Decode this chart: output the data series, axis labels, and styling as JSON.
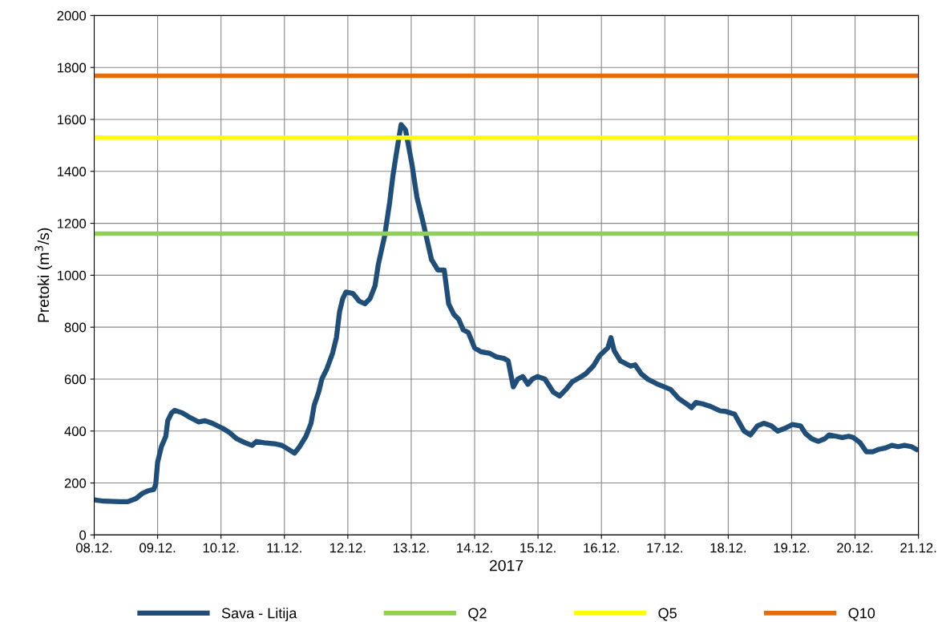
{
  "chart_data": {
    "type": "line",
    "xlabel": "2017",
    "ylabel": "Pretoki (m$^{3}$/s)",
    "ylim": [
      0,
      2000
    ],
    "yticks": [
      0,
      200,
      400,
      600,
      800,
      1000,
      1200,
      1400,
      1600,
      1800,
      2000
    ],
    "xlim": [
      "2017-12-08",
      "2017-12-21"
    ],
    "xticks": [
      {
        "value": "2017-12-08",
        "label": "08.12."
      },
      {
        "value": "2017-12-09",
        "label": "09.12."
      },
      {
        "value": "2017-12-10",
        "label": "10.12."
      },
      {
        "value": "2017-12-11",
        "label": "11.12."
      },
      {
        "value": "2017-12-12",
        "label": "12.12."
      },
      {
        "value": "2017-12-13",
        "label": "13.12."
      },
      {
        "value": "2017-12-14",
        "label": "14.12."
      },
      {
        "value": "2017-12-15",
        "label": "15.12."
      },
      {
        "value": "2017-12-16",
        "label": "16.12."
      },
      {
        "value": "2017-12-17",
        "label": "17.12."
      },
      {
        "value": "2017-12-18",
        "label": "18.12."
      },
      {
        "value": "2017-12-19",
        "label": "19.12."
      },
      {
        "value": "2017-12-20",
        "label": "20.12."
      },
      {
        "value": "2017-12-21",
        "label": "21.12."
      }
    ],
    "grid": true,
    "legend": "bottom",
    "marker": "none",
    "line_style": "solid",
    "series": [
      {
        "name": "Sava - Litija",
        "color": "#1f4e79",
        "x": [
          "2017-12-08T00:00",
          "2017-12-08T03:36",
          "2017-12-08T09:50",
          "2017-12-08T12:43",
          "2017-12-08T15:50",
          "2017-12-08T18:14",
          "2017-12-08T20:24",
          "2017-12-08T22:34",
          "2017-12-08T23:17",
          "2017-12-09T00:00",
          "2017-12-09T01:26",
          "2017-12-09T03:07",
          "2017-12-09T03:50",
          "2017-12-09T05:17",
          "2017-12-09T06:29",
          "2017-12-09T09:22",
          "2017-12-09T11:46",
          "2017-12-09T15:36",
          "2017-12-09T18:00",
          "2017-12-09T20:38",
          "2017-12-10T00:43",
          "2017-12-10T03:07",
          "2017-12-10T04:48",
          "2017-12-10T06:00",
          "2017-12-10T09:07",
          "2017-12-10T11:46",
          "2017-12-10T13:26",
          "2017-12-10T16:19",
          "2017-12-10T20:53",
          "2017-12-10T23:02",
          "2017-12-11T01:26",
          "2017-12-11T03:50",
          "2017-12-11T05:46",
          "2017-12-11T08:10",
          "2017-12-11T10:05",
          "2017-12-11T11:17",
          "2017-12-11T12:58",
          "2017-12-11T14:10",
          "2017-12-11T16:05",
          "2017-12-11T18:14",
          "2017-12-11T19:41",
          "2017-12-11T20:53",
          "2017-12-11T22:05",
          "2017-12-11T23:17",
          "2017-12-12T01:55",
          "2017-12-12T04:19",
          "2017-12-12T06:29",
          "2017-12-12T08:24",
          "2017-12-12T10:19",
          "2017-12-12T11:31",
          "2017-12-12T13:55",
          "2017-12-12T15:50",
          "2017-12-12T17:02",
          "2017-12-12T18:14",
          "2017-12-12T20:10",
          "2017-12-12T21:50",
          "2017-12-13T00:14",
          "2017-12-13T02:10",
          "2017-12-13T04:34",
          "2017-12-13T07:41",
          "2017-12-13T10:05",
          "2017-12-13T12:29",
          "2017-12-13T14:10",
          "2017-12-13T16:05",
          "2017-12-13T18:00",
          "2017-12-13T19:41",
          "2017-12-13T21:36",
          "2017-12-14T00:00",
          "2017-12-14T02:24",
          "2017-12-14T05:31",
          "2017-12-14T08:24",
          "2017-12-14T11:02",
          "2017-12-14T12:43",
          "2017-12-14T14:38",
          "2017-12-14T16:19",
          "2017-12-14T18:14",
          "2017-12-14T20:10",
          "2017-12-14T21:50",
          "2017-12-14T23:46",
          "2017-12-15T02:38",
          "2017-12-15T05:46",
          "2017-12-15T08:10",
          "2017-12-15T10:34",
          "2017-12-15T12:58",
          "2017-12-15T15:36",
          "2017-12-15T18:00",
          "2017-12-15T20:53",
          "2017-12-15T23:17",
          "2017-12-16T02:24",
          "2017-12-16T03:36",
          "2017-12-16T04:48",
          "2017-12-16T07:12",
          "2017-12-16T11:02",
          "2017-12-16T12:43",
          "2017-12-16T15:07",
          "2017-12-16T17:31",
          "2017-12-16T21:22",
          "2017-12-17T02:10",
          "2017-12-17T05:17",
          "2017-12-17T08:53",
          "2017-12-17T10:05",
          "2017-12-17T11:46",
          "2017-12-17T14:10",
          "2017-12-17T17:17",
          "2017-12-17T20:53",
          "2017-12-17T23:17",
          "2017-12-18T02:24",
          "2017-12-18T04:19",
          "2017-12-18T06:00",
          "2017-12-18T08:24",
          "2017-12-18T11:02",
          "2017-12-18T13:26",
          "2017-12-18T16:19",
          "2017-12-18T18:43",
          "2017-12-18T21:22",
          "2017-12-19T00:14",
          "2017-12-19T03:22",
          "2017-12-19T05:17",
          "2017-12-19T07:41",
          "2017-12-19T10:05",
          "2017-12-19T12:29",
          "2017-12-19T14:10",
          "2017-12-19T16:48",
          "2017-12-19T19:12",
          "2017-12-19T21:36",
          "2017-12-19T23:17",
          "2017-12-20T01:55",
          "2017-12-20T04:19",
          "2017-12-20T06:43",
          "2017-12-20T09:07",
          "2017-12-20T11:31",
          "2017-12-20T13:55",
          "2017-12-20T16:19",
          "2017-12-20T18:43",
          "2017-12-20T21:22",
          "2017-12-21T00:00"
        ],
        "values": [
          135,
          130,
          128,
          128,
          140,
          160,
          170,
          175,
          195,
          280,
          340,
          380,
          440,
          470,
          480,
          470,
          455,
          435,
          440,
          430,
          410,
          395,
          380,
          370,
          355,
          345,
          360,
          355,
          350,
          345,
          330,
          315,
          340,
          380,
          430,
          500,
          550,
          600,
          640,
          700,
          760,
          860,
          910,
          935,
          930,
          900,
          890,
          910,
          960,
          1040,
          1150,
          1280,
          1380,
          1460,
          1580,
          1560,
          1430,
          1300,
          1200,
          1060,
          1020,
          1020,
          890,
          850,
          830,
          790,
          780,
          720,
          705,
          700,
          685,
          680,
          670,
          570,
          600,
          610,
          580,
          600,
          610,
          600,
          550,
          535,
          560,
          590,
          605,
          620,
          650,
          690,
          720,
          760,
          710,
          670,
          650,
          655,
          620,
          600,
          580,
          560,
          525,
          500,
          490,
          510,
          505,
          495,
          478,
          475,
          465,
          430,
          400,
          385,
          420,
          430,
          420,
          400,
          410,
          425,
          420,
          390,
          370,
          360,
          370,
          385,
          380,
          375,
          380,
          375,
          355,
          320,
          320,
          330,
          335,
          345,
          340,
          345,
          340,
          325
        ]
      },
      {
        "name": "Q2",
        "color": "#92d050",
        "x": [
          "2017-12-08",
          "2017-12-21"
        ],
        "values": [
          1160,
          1160
        ]
      },
      {
        "name": "Q5",
        "color": "#ffff00",
        "x": [
          "2017-12-08",
          "2017-12-21"
        ],
        "values": [
          1530,
          1530
        ]
      },
      {
        "name": "Q10",
        "color": "#e46c0a",
        "x": [
          "2017-12-08",
          "2017-12-21"
        ],
        "values": [
          1768,
          1768
        ]
      }
    ]
  }
}
